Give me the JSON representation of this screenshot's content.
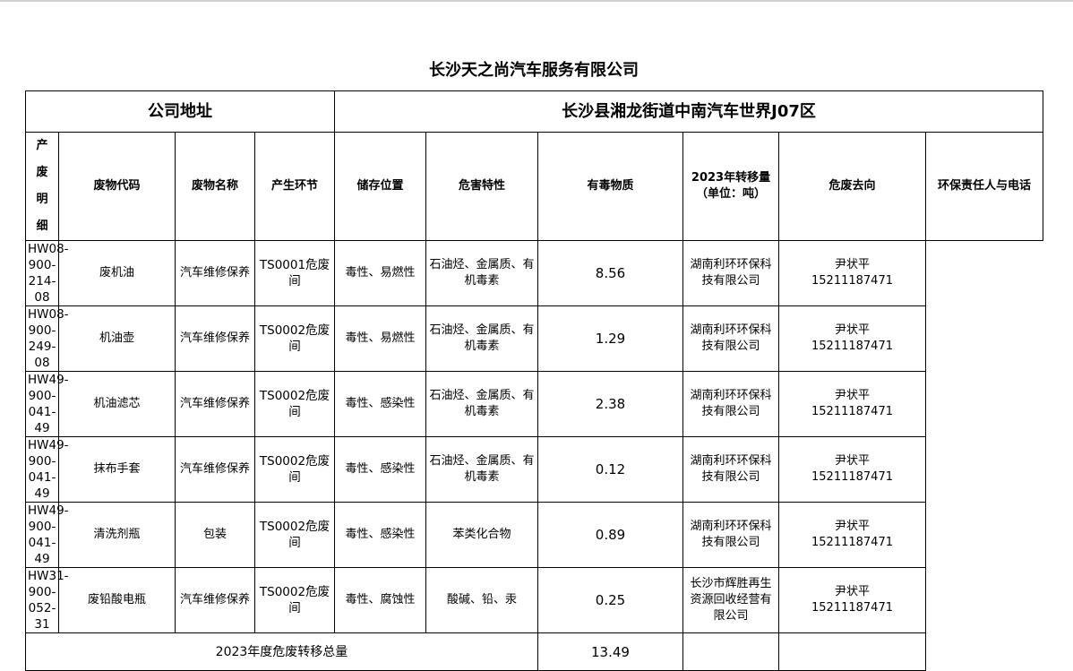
{
  "title": "长沙天之尚汽车服务有限公司",
  "address": {
    "label": "公司地址",
    "value": "长沙县湘龙街道中南汽车世界J07区"
  },
  "side_label": [
    "产",
    "废",
    "明",
    "细"
  ],
  "headers": [
    "废物代码",
    "废物名称",
    "产生环节",
    "储存位置",
    "危害特性",
    "有毒物质",
    "2023年转移量",
    "（单位：吨）",
    "危废去向",
    "环保责任人与电话"
  ],
  "rows": [
    {
      "code": "HW08-900-214-08",
      "name": "废机油",
      "stage": "汽车维修保养",
      "storage": "TS0001危废间",
      "hazard": "毒性、易燃性",
      "toxic": "石油烃、金属质、有机毒素",
      "amount": "8.56",
      "dest": "湖南利环环保科技有限公司",
      "person": "尹状平",
      "phone": "15211187471"
    },
    {
      "code": "HW08-900-249-08",
      "name": "机油壶",
      "stage": "汽车维修保养",
      "storage": "TS0002危废间",
      "hazard": "毒性、易燃性",
      "toxic": "石油烃、金属质、有机毒素",
      "amount": "1.29",
      "dest": "湖南利环环保科技有限公司",
      "person": "尹状平",
      "phone": "15211187471"
    },
    {
      "code": "HW49-900-041-49",
      "name": "机油滤芯",
      "stage": "汽车维修保养",
      "storage": "TS0002危废间",
      "hazard": "毒性、感染性",
      "toxic": "石油烃、金属质、有机毒素",
      "amount": "2.38",
      "dest": "湖南利环环保科技有限公司",
      "person": "尹状平",
      "phone": "15211187471"
    },
    {
      "code": "HW49-900-041-49",
      "name": "抹布手套",
      "stage": "汽车维修保养",
      "storage": "TS0002危废间",
      "hazard": "毒性、感染性",
      "toxic": "石油烃、金属质、有机毒素",
      "amount": "0.12",
      "dest": "湖南利环环保科技有限公司",
      "person": "尹状平",
      "phone": "15211187471"
    },
    {
      "code": "HW49-900-041-49",
      "name": "清洗剂瓶",
      "stage": "包装",
      "storage": "TS0002危废间",
      "hazard": "毒性、感染性",
      "toxic": "苯类化合物",
      "amount": "0.89",
      "dest": "湖南利环环保科技有限公司",
      "person": "尹状平",
      "phone": "15211187471"
    },
    {
      "code": "HW31-900-052-31",
      "name": "废铅酸电瓶",
      "stage": "汽车维修保养",
      "storage": "TS0002危废间",
      "hazard": "毒性、腐蚀性",
      "toxic": "酸碱、铅、汞",
      "amount": "0.25",
      "dest": "长沙市辉胜再生资源回收经营有限公司",
      "person": "尹状平",
      "phone": "15211187471"
    }
  ],
  "total": {
    "label": "2023年度危废转移总量",
    "value": "13.49"
  }
}
